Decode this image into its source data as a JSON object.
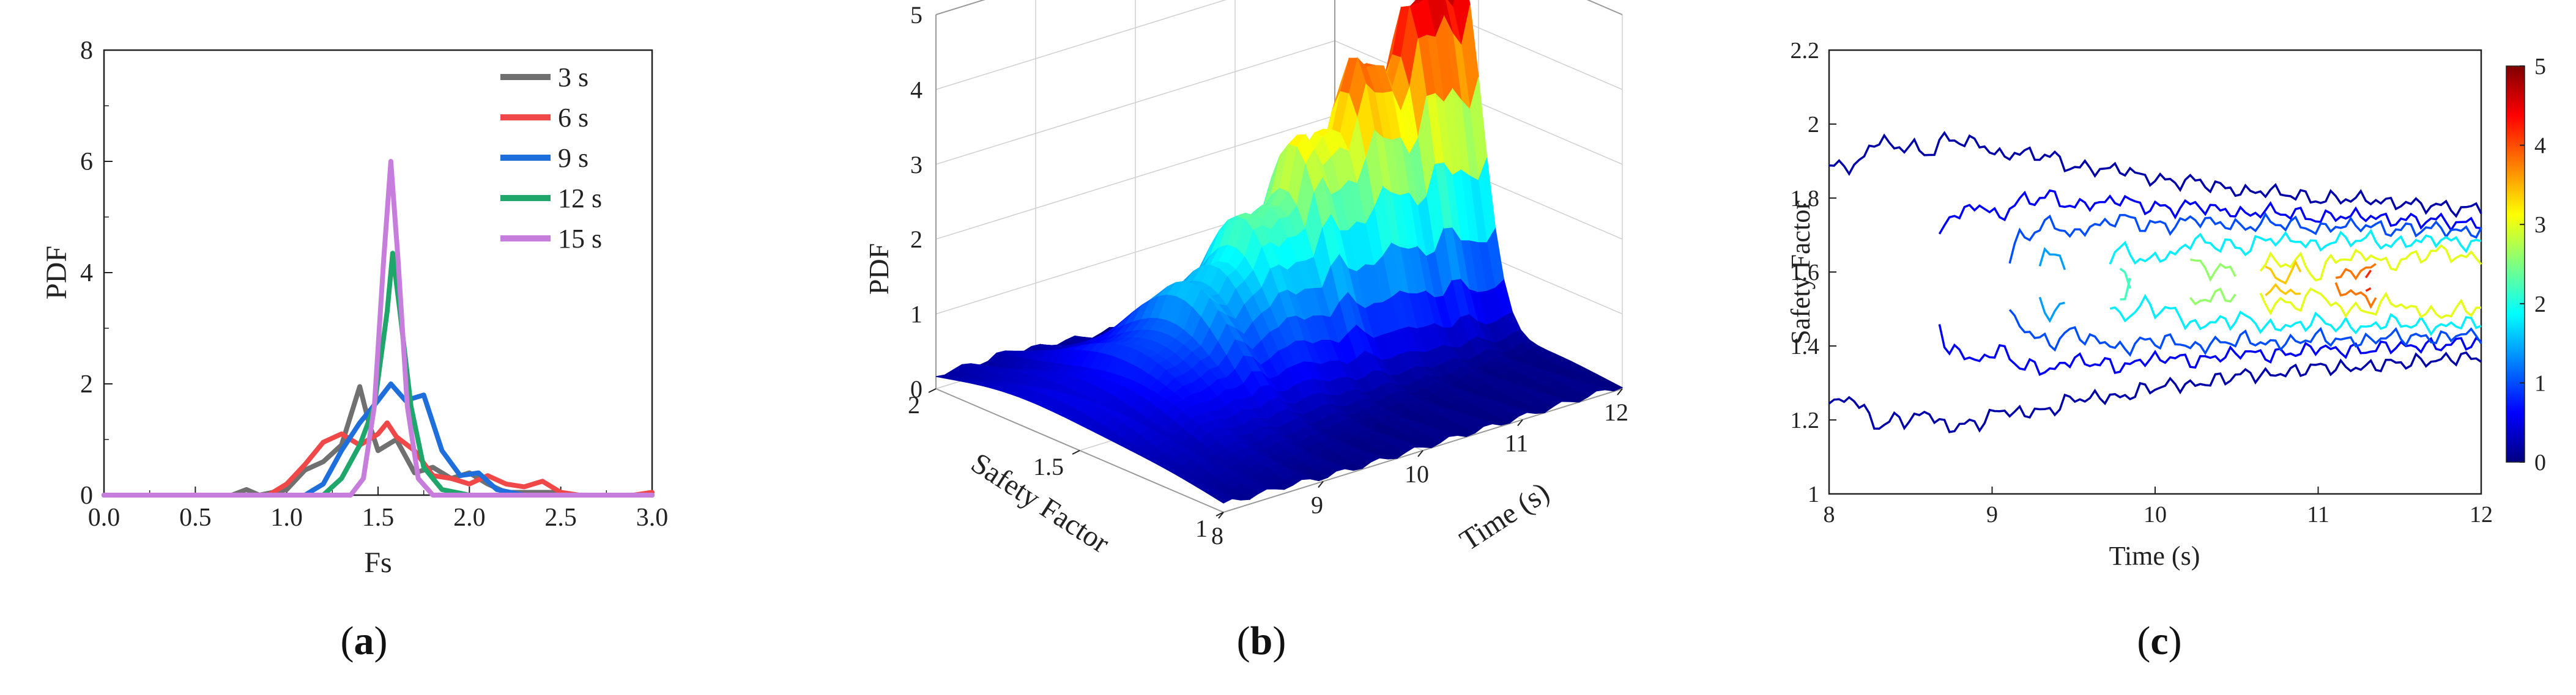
{
  "colors": {
    "series": [
      "#707070",
      "#f04848",
      "#1e6fdc",
      "#1fa66a",
      "#c77ddc"
    ],
    "jet_stops": [
      "#00007f",
      "#0000ff",
      "#007fff",
      "#00ffff",
      "#7fff7f",
      "#ffff00",
      "#ff7f00",
      "#ff0000",
      "#7f0000"
    ]
  },
  "chart_data": [
    {
      "type": "line",
      "panel_label": "a",
      "xlabel": "Fs",
      "ylabel": "PDF",
      "xlim": [
        0.0,
        3.0
      ],
      "ylim": [
        0,
        8
      ],
      "xticks": [
        "0.0",
        "0.5",
        "1.0",
        "1.5",
        "2.0",
        "2.5",
        "3.0"
      ],
      "yticks": [
        "0",
        "2",
        "4",
        "6",
        "8"
      ],
      "legend_position": "top-right",
      "series": [
        {
          "name": "3 s",
          "points": [
            [
              0,
              0
            ],
            [
              0.7,
              0
            ],
            [
              0.78,
              0.1
            ],
            [
              0.85,
              0
            ],
            [
              1.0,
              0.1
            ],
            [
              1.1,
              0.45
            ],
            [
              1.2,
              0.6
            ],
            [
              1.3,
              0.9
            ],
            [
              1.4,
              1.95
            ],
            [
              1.45,
              1.3
            ],
            [
              1.5,
              0.8
            ],
            [
              1.55,
              0.9
            ],
            [
              1.6,
              1.0
            ],
            [
              1.7,
              0.4
            ],
            [
              1.8,
              0.5
            ],
            [
              1.9,
              0.3
            ],
            [
              2.0,
              0.4
            ],
            [
              2.1,
              0.2
            ],
            [
              2.2,
              0.05
            ],
            [
              2.3,
              0.05
            ],
            [
              2.45,
              0.05
            ],
            [
              2.55,
              0
            ],
            [
              3.0,
              0
            ]
          ]
        },
        {
          "name": "6 s",
          "points": [
            [
              0,
              0
            ],
            [
              0.9,
              0
            ],
            [
              1.0,
              0.2
            ],
            [
              1.1,
              0.55
            ],
            [
              1.2,
              0.95
            ],
            [
              1.3,
              1.1
            ],
            [
              1.4,
              0.9
            ],
            [
              1.5,
              1.1
            ],
            [
              1.55,
              1.3
            ],
            [
              1.6,
              1.05
            ],
            [
              1.7,
              0.8
            ],
            [
              1.8,
              0.35
            ],
            [
              1.9,
              0.3
            ],
            [
              2.0,
              0.2
            ],
            [
              2.1,
              0.35
            ],
            [
              2.2,
              0.2
            ],
            [
              2.3,
              0.15
            ],
            [
              2.4,
              0.25
            ],
            [
              2.5,
              0.05
            ],
            [
              2.6,
              0
            ],
            [
              2.9,
              0
            ],
            [
              3.0,
              0.05
            ]
          ]
        },
        {
          "name": "9 s",
          "points": [
            [
              0,
              0
            ],
            [
              1.1,
              0
            ],
            [
              1.2,
              0.2
            ],
            [
              1.3,
              0.8
            ],
            [
              1.4,
              1.3
            ],
            [
              1.5,
              1.7
            ],
            [
              1.57,
              2.0
            ],
            [
              1.65,
              1.7
            ],
            [
              1.75,
              1.8
            ],
            [
              1.85,
              0.8
            ],
            [
              1.95,
              0.35
            ],
            [
              2.05,
              0.4
            ],
            [
              2.15,
              0.1
            ],
            [
              2.3,
              0
            ],
            [
              3.0,
              0
            ]
          ]
        },
        {
          "name": "12 s",
          "points": [
            [
              0,
              0
            ],
            [
              1.2,
              0
            ],
            [
              1.3,
              0.3
            ],
            [
              1.4,
              0.9
            ],
            [
              1.48,
              1.6
            ],
            [
              1.55,
              3.3
            ],
            [
              1.58,
              4.35
            ],
            [
              1.62,
              3.3
            ],
            [
              1.68,
              1.6
            ],
            [
              1.75,
              0.5
            ],
            [
              1.85,
              0.1
            ],
            [
              2.0,
              0
            ],
            [
              3.0,
              0
            ]
          ]
        },
        {
          "name": "15 s",
          "points": [
            [
              0,
              0
            ],
            [
              1.35,
              0
            ],
            [
              1.42,
              0.3
            ],
            [
              1.48,
              1.6
            ],
            [
              1.53,
              4.2
            ],
            [
              1.57,
              6.0
            ],
            [
              1.61,
              4.2
            ],
            [
              1.66,
              1.6
            ],
            [
              1.72,
              0.3
            ],
            [
              1.8,
              0
            ],
            [
              3.0,
              0
            ]
          ]
        }
      ]
    },
    {
      "type": "surface3d",
      "panel_label": "b",
      "zlabel": "PDF",
      "xlabel": "Time (s)",
      "ylabel": "Safety Factor",
      "xticks": [
        "8",
        "9",
        "10",
        "11",
        "12"
      ],
      "yticks": [
        "1",
        "1.5",
        "2"
      ],
      "zticks": [
        "0",
        "1",
        "2",
        "3",
        "4",
        "5"
      ],
      "xlim": [
        8,
        12
      ],
      "ylim": [
        1,
        2
      ],
      "zlim": [
        0,
        5
      ],
      "peak_pdf_over_time": [
        [
          8.0,
          0.35
        ],
        [
          8.5,
          0.5
        ],
        [
          9.0,
          1.0
        ],
        [
          9.5,
          1.6
        ],
        [
          10.0,
          2.2
        ],
        [
          10.5,
          2.9
        ],
        [
          11.0,
          3.6
        ],
        [
          11.5,
          4.0
        ],
        [
          11.8,
          4.8
        ],
        [
          12.0,
          4.6
        ]
      ],
      "peak_safety_factor": 1.57,
      "colormap": "jet"
    },
    {
      "type": "contour",
      "panel_label": "c",
      "xlabel": "Time (s)",
      "ylabel": "Safety Factor",
      "xlim": [
        8,
        12
      ],
      "ylim": [
        1,
        2.2
      ],
      "xticks": [
        "8",
        "9",
        "10",
        "11",
        "12"
      ],
      "yticks": [
        "1",
        "1.2",
        "1.4",
        "1.6",
        "1.8",
        "2",
        "2.2"
      ],
      "colorbar_ticks": [
        "0",
        "1",
        "2",
        "3",
        "4",
        "5"
      ],
      "colorbar_range": [
        0,
        5
      ],
      "colormap": "jet",
      "contour_levels": [
        0.2,
        0.6,
        1.0,
        1.4,
        1.8,
        2.2,
        2.6,
        3.0,
        3.4,
        3.8,
        4.2
      ],
      "center_safety_factor": 1.57
    }
  ]
}
